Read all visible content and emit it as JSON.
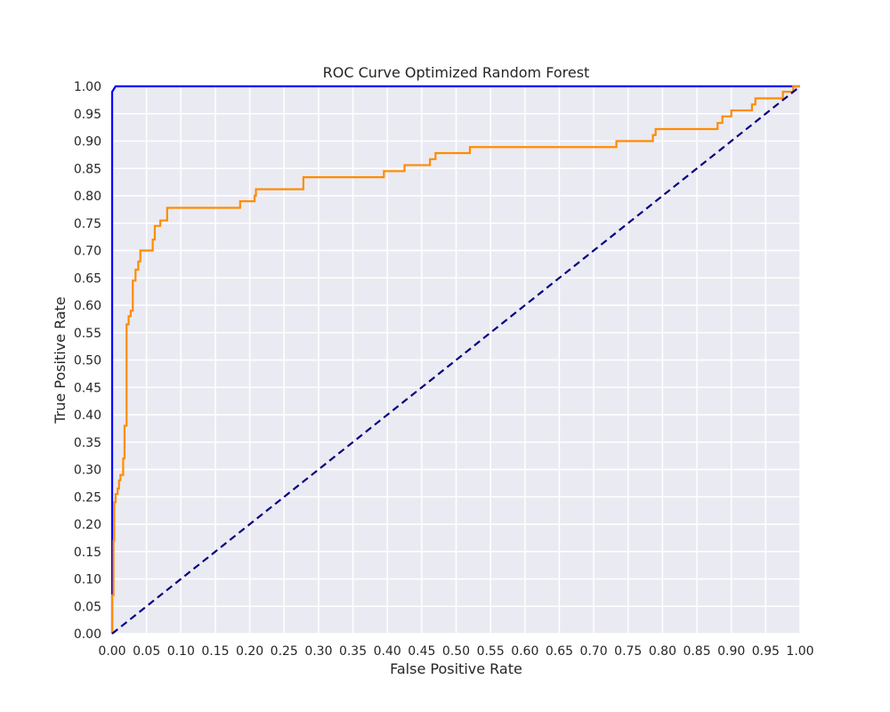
{
  "chart_data": {
    "type": "line",
    "title": "ROC Curve Optimized Random Forest",
    "xlabel": "False Positive Rate",
    "ylabel": "True Positive Rate",
    "xlim": [
      0.0,
      1.0
    ],
    "ylim": [
      0.0,
      1.0
    ],
    "xticks": [
      "0.00",
      "0.05",
      "0.10",
      "0.15",
      "0.20",
      "0.25",
      "0.30",
      "0.35",
      "0.40",
      "0.45",
      "0.50",
      "0.55",
      "0.60",
      "0.65",
      "0.70",
      "0.75",
      "0.80",
      "0.85",
      "0.90",
      "0.95",
      "1.00"
    ],
    "yticks": [
      "0.00",
      "0.05",
      "0.10",
      "0.15",
      "0.20",
      "0.25",
      "0.30",
      "0.35",
      "0.40",
      "0.45",
      "0.50",
      "0.55",
      "0.60",
      "0.65",
      "0.70",
      "0.75",
      "0.80",
      "0.85",
      "0.90",
      "0.95",
      "1.00"
    ],
    "grid": true,
    "background": "#eaeaf2",
    "series": [
      {
        "color": "#0000ff",
        "dash": "solid",
        "points": [
          [
            0.0,
            0.0
          ],
          [
            0.0,
            0.99
          ],
          [
            0.005,
            1.0
          ],
          [
            1.0,
            1.0
          ]
        ]
      },
      {
        "color": "#ff8c00",
        "dash": "solid",
        "points": [
          [
            0.0,
            0.0
          ],
          [
            0.0,
            0.07
          ],
          [
            0.002,
            0.07
          ],
          [
            0.002,
            0.17
          ],
          [
            0.003,
            0.17
          ],
          [
            0.003,
            0.24
          ],
          [
            0.005,
            0.24
          ],
          [
            0.005,
            0.255
          ],
          [
            0.008,
            0.255
          ],
          [
            0.008,
            0.265
          ],
          [
            0.01,
            0.265
          ],
          [
            0.01,
            0.28
          ],
          [
            0.012,
            0.28
          ],
          [
            0.012,
            0.29
          ],
          [
            0.016,
            0.29
          ],
          [
            0.016,
            0.32
          ],
          [
            0.018,
            0.32
          ],
          [
            0.018,
            0.38
          ],
          [
            0.021,
            0.38
          ],
          [
            0.021,
            0.565
          ],
          [
            0.024,
            0.565
          ],
          [
            0.024,
            0.58
          ],
          [
            0.027,
            0.58
          ],
          [
            0.027,
            0.59
          ],
          [
            0.03,
            0.59
          ],
          [
            0.03,
            0.645
          ],
          [
            0.034,
            0.645
          ],
          [
            0.034,
            0.665
          ],
          [
            0.038,
            0.665
          ],
          [
            0.038,
            0.68
          ],
          [
            0.041,
            0.68
          ],
          [
            0.041,
            0.7
          ],
          [
            0.059,
            0.7
          ],
          [
            0.059,
            0.72
          ],
          [
            0.062,
            0.72
          ],
          [
            0.062,
            0.745
          ],
          [
            0.07,
            0.745
          ],
          [
            0.07,
            0.755
          ],
          [
            0.08,
            0.755
          ],
          [
            0.08,
            0.778
          ],
          [
            0.186,
            0.778
          ],
          [
            0.186,
            0.79
          ],
          [
            0.207,
            0.79
          ],
          [
            0.207,
            0.8
          ],
          [
            0.209,
            0.8
          ],
          [
            0.209,
            0.812
          ],
          [
            0.278,
            0.812
          ],
          [
            0.278,
            0.834
          ],
          [
            0.395,
            0.834
          ],
          [
            0.395,
            0.845
          ],
          [
            0.425,
            0.845
          ],
          [
            0.425,
            0.856
          ],
          [
            0.462,
            0.856
          ],
          [
            0.462,
            0.867
          ],
          [
            0.47,
            0.867
          ],
          [
            0.47,
            0.878
          ],
          [
            0.52,
            0.878
          ],
          [
            0.52,
            0.889
          ],
          [
            0.733,
            0.889
          ],
          [
            0.733,
            0.9
          ],
          [
            0.786,
            0.9
          ],
          [
            0.786,
            0.911
          ],
          [
            0.79,
            0.911
          ],
          [
            0.79,
            0.922
          ],
          [
            0.88,
            0.922
          ],
          [
            0.88,
            0.933
          ],
          [
            0.887,
            0.933
          ],
          [
            0.887,
            0.945
          ],
          [
            0.9,
            0.945
          ],
          [
            0.9,
            0.956
          ],
          [
            0.93,
            0.956
          ],
          [
            0.93,
            0.967
          ],
          [
            0.935,
            0.967
          ],
          [
            0.935,
            0.978
          ],
          [
            0.975,
            0.978
          ],
          [
            0.975,
            0.99
          ],
          [
            0.99,
            0.99
          ],
          [
            0.99,
            1.0
          ],
          [
            1.0,
            1.0
          ]
        ]
      },
      {
        "color": "#000080",
        "dash": "dashed",
        "points": [
          [
            0.0,
            0.0
          ],
          [
            1.0,
            1.0
          ]
        ]
      }
    ]
  }
}
